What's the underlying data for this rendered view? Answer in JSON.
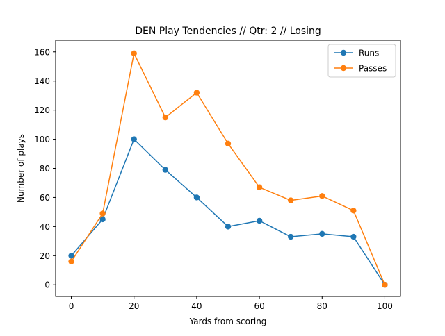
{
  "chart_data": {
    "type": "line",
    "title": "DEN Play Tendencies // Qtr: 2 // Losing",
    "xlabel": "Yards from scoring",
    "ylabel": "Number of plays",
    "xlim": [
      -5,
      105
    ],
    "ylim": [
      -8,
      168
    ],
    "xticks": [
      0,
      20,
      40,
      60,
      80,
      100
    ],
    "yticks": [
      0,
      20,
      40,
      60,
      80,
      100,
      120,
      140,
      160
    ],
    "x": [
      0,
      10,
      20,
      30,
      40,
      50,
      60,
      70,
      80,
      90,
      100
    ],
    "grid": false,
    "legend_position": "top-right",
    "series": [
      {
        "name": "Runs",
        "color": "#1f77b4",
        "values": [
          20,
          45,
          100,
          79,
          60,
          40,
          44,
          33,
          35,
          33,
          0
        ]
      },
      {
        "name": "Passes",
        "color": "#ff7f0e",
        "values": [
          16,
          49,
          159,
          115,
          132,
          97,
          67,
          58,
          61,
          51,
          0
        ]
      }
    ]
  }
}
